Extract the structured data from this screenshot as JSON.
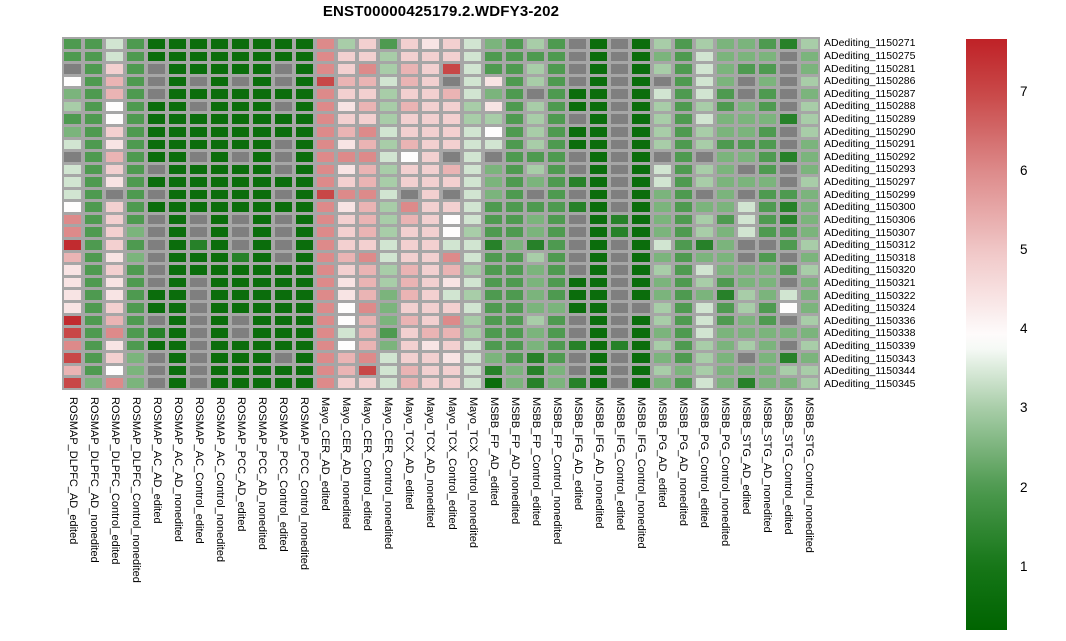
{
  "title": "ENST00000425179.2.WDFY3-202",
  "chart_data": {
    "type": "heatmap",
    "title": "ENST00000425179.2.WDFY3-202",
    "rows": [
      "ADediting_1150271",
      "ADediting_1150275",
      "ADediting_1150281",
      "ADediting_1150286",
      "ADediting_1150287",
      "ADediting_1150288",
      "ADediting_1150289",
      "ADediting_1150290",
      "ADediting_1150291",
      "ADediting_1150292",
      "ADediting_1150293",
      "ADediting_1150297",
      "ADediting_1150299",
      "ADediting_1150300",
      "ADediting_1150306",
      "ADediting_1150307",
      "ADediting_1150312",
      "ADediting_1150318",
      "ADediting_1150320",
      "ADediting_1150321",
      "ADediting_1150322",
      "ADediting_1150324",
      "ADediting_1150336",
      "ADediting_1150338",
      "ADediting_1150339",
      "ADediting_1150343",
      "ADediting_1150344",
      "ADediting_1150345"
    ],
    "columns": [
      "ROSMAP_DLPFC_AD_edited",
      "ROSMAP_DLPFC_AD_nonedited",
      "ROSMAP_DLPFC_Control_edited",
      "ROSMAP_DLPFC_Control_nonedited",
      "ROSMAP_AC_AD_edited",
      "ROSMAP_AC_AD_nonedited",
      "ROSMAP_AC_Control_edited",
      "ROSMAP_AC_Control_nonedited",
      "ROSMAP_PCC_AD_edited",
      "ROSMAP_PCC_AD_nonedited",
      "ROSMAP_PCC_Control_edited",
      "ROSMAP_PCC_Control_nonedited",
      "Mayo_CER_AD_edited",
      "Mayo_CER_AD_nonedited",
      "Mayo_CER_Control_edited",
      "Mayo_CER_Control_nonedited",
      "Mayo_TCX_AD_edited",
      "Mayo_TCX_AD_nonedited",
      "Mayo_TCX_Control_edited",
      "Mayo_TCX_Control_nonedited",
      "MSBB_FP_AD_edited",
      "MSBB_FP_AD_nonedited",
      "MSBB_FP_Control_edited",
      "MSBB_FP_Control_nonedited",
      "MSBB_IFG_AD_edited",
      "MSBB_IFG_AD_nonedited",
      "MSBB_IFG_Control_edited",
      "MSBB_IFG_Control_nonedited",
      "MSBB_PG_AD_edited",
      "MSBB_PG_AD_nonedited",
      "MSBB_PG_Control_edited",
      "MSBB_PG_Control_nonedited",
      "MSBB_STG_AD_edited",
      "MSBB_STG_AD_nonedited",
      "MSBB_STG_Control_edited",
      "MSBB_STG_Control_nonedited"
    ],
    "values": [
      [
        2,
        2,
        3.4,
        2,
        0.6,
        0.6,
        0.6,
        0.6,
        0.6,
        0.6,
        0.6,
        0.6,
        6,
        3,
        4.8,
        2,
        4.8,
        4.4,
        4.8,
        3.4,
        2.5,
        2,
        3,
        2,
        null,
        0.6,
        null,
        0.6,
        3,
        2,
        3,
        2.5,
        2.5,
        2,
        1.3,
        3
      ],
      [
        2,
        2,
        3.4,
        2,
        0.6,
        0.6,
        0.6,
        0.6,
        0.6,
        0.6,
        0.6,
        0.6,
        6,
        4.8,
        4.8,
        3,
        4.8,
        4.8,
        4.8,
        3.4,
        2,
        2,
        2,
        2,
        null,
        0.6,
        null,
        0.6,
        2.5,
        2,
        3.4,
        2.5,
        2.5,
        2.5,
        null,
        2.5
      ],
      [
        null,
        2,
        4.8,
        2,
        null,
        0.6,
        0.6,
        0.6,
        0.6,
        0.6,
        null,
        0.6,
        6,
        4.8,
        6,
        3,
        5.3,
        4.8,
        7,
        3.4,
        2,
        2,
        3,
        2,
        null,
        0.6,
        null,
        0.6,
        3,
        2,
        3.4,
        2.5,
        2,
        2,
        null,
        2.5
      ],
      [
        3.9,
        2,
        5.3,
        2,
        null,
        0.6,
        null,
        0.6,
        null,
        0.6,
        null,
        0.6,
        7,
        5.3,
        5.3,
        3.4,
        5.3,
        4.8,
        null,
        3.4,
        4.4,
        2,
        3,
        2,
        null,
        0.6,
        null,
        0.6,
        null,
        2,
        3.4,
        2.5,
        null,
        2.5,
        null,
        3
      ],
      [
        2.5,
        2,
        5.3,
        2,
        null,
        0.6,
        0.6,
        0.6,
        0.6,
        0.6,
        0.6,
        0.6,
        6,
        4.8,
        4.8,
        3,
        4.8,
        4.8,
        5.3,
        3.4,
        2.5,
        2,
        null,
        2,
        0.6,
        0.6,
        null,
        0.6,
        3.4,
        2,
        3.4,
        2,
        null,
        2,
        null,
        2.5
      ],
      [
        3,
        2,
        3.9,
        2,
        0.6,
        0.6,
        null,
        0.6,
        0.6,
        0.6,
        null,
        0.6,
        6,
        4.4,
        5.3,
        3,
        5.3,
        4.8,
        4.8,
        3,
        4.4,
        2,
        3,
        2,
        0.6,
        0.6,
        null,
        0.6,
        3,
        2,
        3,
        2,
        2.5,
        2,
        null,
        3
      ],
      [
        2,
        2,
        3.9,
        2,
        0.6,
        0.6,
        0.6,
        0.6,
        0.6,
        0.6,
        0.6,
        0.6,
        6,
        4.8,
        4.8,
        3,
        4.8,
        4.8,
        4.8,
        3,
        3,
        2,
        3,
        2,
        null,
        0.6,
        null,
        0.6,
        3,
        2,
        3.4,
        2.5,
        2.5,
        2.5,
        1.3,
        3
      ],
      [
        2.5,
        2,
        4.8,
        2,
        0.6,
        0.6,
        0.6,
        0.6,
        0.6,
        0.6,
        0.6,
        0.6,
        6,
        5.3,
        6,
        3.4,
        4.8,
        4.8,
        4.8,
        3.4,
        3.9,
        2,
        3,
        2,
        0.6,
        0.6,
        null,
        0.6,
        3,
        2,
        3,
        2.5,
        2.5,
        2,
        null,
        3
      ],
      [
        3.4,
        2,
        4.4,
        2,
        0.6,
        0.6,
        0.6,
        0.6,
        0.6,
        0.6,
        null,
        0.6,
        6,
        4.4,
        5.3,
        3,
        5.3,
        4.8,
        4.8,
        3.4,
        3.4,
        2,
        3,
        2,
        0.6,
        0.6,
        null,
        0.6,
        3,
        2,
        3,
        2,
        2,
        2,
        null,
        2.5
      ],
      [
        null,
        2,
        5.3,
        2,
        0.6,
        0.6,
        null,
        0.6,
        null,
        0.6,
        null,
        0.6,
        6,
        6,
        6,
        3.4,
        3.9,
        4.8,
        null,
        3.4,
        null,
        2,
        2,
        2,
        null,
        0.6,
        null,
        0.6,
        null,
        2,
        null,
        2.5,
        2.5,
        2,
        1.3,
        2.5
      ],
      [
        3.4,
        2,
        4.8,
        2,
        null,
        0.6,
        0.6,
        0.6,
        0.6,
        0.6,
        null,
        0.6,
        6,
        4.4,
        5.3,
        3,
        4.8,
        4.8,
        5.3,
        3.4,
        2.5,
        2,
        3,
        2,
        null,
        0.6,
        null,
        0.6,
        3.4,
        2,
        3,
        2.5,
        null,
        2,
        null,
        2.5
      ],
      [
        3.4,
        2,
        4.4,
        2,
        0.6,
        0.6,
        0.6,
        0.6,
        0.6,
        0.6,
        0.6,
        0.6,
        6,
        4.8,
        5.3,
        3,
        4.8,
        4.8,
        4.8,
        3.4,
        2.5,
        2,
        2.5,
        2,
        1.3,
        0.6,
        null,
        0.6,
        3.4,
        2,
        3,
        2.5,
        2.5,
        2.5,
        null,
        3
      ],
      [
        3.4,
        2,
        null,
        2,
        null,
        0.6,
        0.6,
        0.6,
        0.6,
        0.6,
        null,
        0.6,
        7,
        6,
        6,
        3.4,
        null,
        4.8,
        null,
        3.4,
        2.5,
        2,
        null,
        2,
        null,
        0.6,
        null,
        0.6,
        2.5,
        2,
        null,
        2.5,
        null,
        2,
        2,
        2.5
      ],
      [
        3.9,
        2,
        4.8,
        2,
        0.6,
        0.6,
        0.6,
        0.6,
        0.6,
        0.6,
        0.6,
        0.6,
        6,
        4.4,
        5.3,
        3,
        6,
        4.8,
        4.8,
        3.4,
        2,
        2,
        2,
        2,
        1.3,
        0.6,
        null,
        0.6,
        2.5,
        2,
        2.5,
        2.5,
        3.4,
        2,
        1.3,
        2.5
      ],
      [
        6,
        2,
        4.8,
        2,
        null,
        0.6,
        null,
        0.6,
        null,
        0.6,
        null,
        0.6,
        6,
        4.8,
        5.3,
        3,
        5.3,
        4.8,
        3.9,
        3.4,
        2,
        2,
        2.5,
        2,
        null,
        0.6,
        1.3,
        0.6,
        2.5,
        2,
        3,
        2,
        3.4,
        2,
        1.3,
        2.5
      ],
      [
        6,
        2,
        4.8,
        2.5,
        null,
        0.6,
        null,
        0.6,
        null,
        0.6,
        null,
        0.6,
        6,
        4.8,
        5.3,
        3,
        4.8,
        4.8,
        3.9,
        3,
        2,
        2,
        2.5,
        2,
        null,
        0.6,
        1.3,
        0.6,
        2.5,
        2,
        3,
        2.5,
        3.4,
        2,
        2,
        2.5
      ],
      [
        7.5,
        2,
        4.8,
        2,
        null,
        0.6,
        1.3,
        0.6,
        null,
        0.6,
        null,
        0.6,
        6,
        4.8,
        4.8,
        3.4,
        4.8,
        4.8,
        3.4,
        3.4,
        1.3,
        2.5,
        1.3,
        2,
        null,
        0.6,
        null,
        0.6,
        3.4,
        2,
        1.3,
        2.5,
        null,
        null,
        2,
        3
      ],
      [
        5.3,
        2,
        4.4,
        2.5,
        null,
        0.6,
        0.6,
        0.6,
        1.3,
        0.6,
        null,
        0.6,
        6,
        5.3,
        6,
        3.4,
        4.8,
        4.8,
        6,
        3.4,
        2,
        2,
        3,
        2,
        null,
        0.6,
        null,
        0.6,
        2.5,
        2,
        2.5,
        2.5,
        null,
        2,
        null,
        2.5
      ],
      [
        4.4,
        2,
        4.8,
        2,
        null,
        0.6,
        0.6,
        0.6,
        0.6,
        0.6,
        0.6,
        0.6,
        6,
        4.8,
        5.3,
        3,
        5.3,
        4.8,
        5.3,
        3,
        2,
        2,
        2.5,
        2,
        null,
        0.6,
        null,
        0.6,
        3,
        2,
        3.4,
        2.5,
        2.5,
        2.5,
        2,
        3
      ],
      [
        4.4,
        2,
        4.4,
        2,
        null,
        0.6,
        null,
        0.6,
        0.6,
        0.6,
        0.6,
        0.6,
        6,
        4.4,
        5.3,
        3,
        5.3,
        4.8,
        4.4,
        3.4,
        2,
        2,
        2.5,
        2,
        0.6,
        0.6,
        null,
        0.6,
        2.5,
        2,
        3,
        2,
        2.5,
        2.5,
        null,
        2.5
      ],
      [
        4.4,
        2,
        4.4,
        2,
        0.6,
        0.6,
        null,
        0.6,
        0.6,
        0.6,
        0.6,
        0.6,
        6,
        4.4,
        5.3,
        2.5,
        5.3,
        4.8,
        3.4,
        3,
        2,
        2,
        2.5,
        2,
        0.6,
        0.6,
        null,
        0.6,
        2.5,
        2,
        2.5,
        1.3,
        3,
        2.5,
        3.4,
        2.5
      ],
      [
        4.4,
        2,
        4.8,
        2,
        0.6,
        0.6,
        null,
        0.6,
        0.6,
        0.6,
        0.6,
        0.6,
        6,
        3.9,
        6,
        2.5,
        4.8,
        4.8,
        4.8,
        3.4,
        2,
        2,
        2.5,
        2.5,
        0.6,
        0.6,
        null,
        null,
        3,
        2,
        3.4,
        2,
        3,
        2,
        3.9,
        2.5
      ],
      [
        7.5,
        2,
        5.3,
        2,
        null,
        0.6,
        null,
        0.6,
        null,
        0.6,
        0.6,
        0.6,
        6,
        3.9,
        5.3,
        2.5,
        5.3,
        4.8,
        6,
        3,
        2,
        2,
        3,
        2,
        null,
        0.6,
        null,
        0.6,
        3,
        2,
        3.4,
        2,
        2.5,
        2,
        null,
        3
      ],
      [
        7,
        2,
        6,
        2,
        1.3,
        0.6,
        null,
        0.6,
        null,
        0.6,
        0.6,
        0.6,
        6,
        3.4,
        5.3,
        2,
        4.8,
        5.3,
        5.3,
        3,
        2,
        2,
        2.5,
        2,
        null,
        0.6,
        null,
        0.6,
        2.5,
        2,
        3.4,
        2.5,
        2.5,
        2.5,
        2.5,
        2.5
      ],
      [
        6,
        2,
        4.4,
        2,
        0.6,
        0.6,
        null,
        0.6,
        0.6,
        0.6,
        0.6,
        0.6,
        6,
        3.9,
        5.3,
        2.5,
        4.8,
        4.4,
        4.8,
        3.4,
        2,
        2,
        2.5,
        2,
        1.3,
        0.6,
        1.3,
        0.6,
        3,
        2,
        3,
        2.5,
        3,
        2.5,
        null,
        3
      ],
      [
        7,
        2,
        4.8,
        2.5,
        null,
        0.6,
        null,
        0.6,
        0.6,
        0.6,
        null,
        0.6,
        6,
        5.3,
        6,
        3.4,
        4.8,
        4.8,
        4.4,
        3.4,
        2.5,
        2,
        1.3,
        2,
        null,
        0.6,
        null,
        0.6,
        2.5,
        2,
        3,
        2.5,
        null,
        2.5,
        1.3,
        2.5
      ],
      [
        5.3,
        2,
        3.9,
        2.5,
        null,
        0.6,
        null,
        0.6,
        0.6,
        0.6,
        0.6,
        0.6,
        6,
        5.3,
        7,
        3.4,
        5.3,
        4.8,
        4.8,
        3.4,
        1.3,
        2.5,
        1.3,
        2.5,
        null,
        0.6,
        null,
        0.6,
        3,
        2.5,
        3,
        2.5,
        2.5,
        2.5,
        3,
        3
      ],
      [
        7,
        2.5,
        6,
        2.5,
        null,
        0.6,
        null,
        0.6,
        0.6,
        0.6,
        0.6,
        0.6,
        6,
        4.8,
        4.8,
        3.4,
        5.3,
        4.8,
        4.8,
        3.4,
        0.6,
        2.5,
        1.3,
        2.5,
        1.3,
        0.6,
        null,
        0.6,
        2.5,
        2,
        3.4,
        2.5,
        1.3,
        2.5,
        2.5,
        3
      ]
    ],
    "value_range": [
      0.2,
      7.67
    ],
    "na_value": null,
    "colors": {
      "na_cell": "#7f7f7f",
      "grid_line": "#a6a6a6",
      "low": "#006400",
      "mid": "#ffffff",
      "high": "#bf2227"
    },
    "colormap_anchors": [
      [
        0.2,
        "#006400"
      ],
      [
        1.0,
        "#167618"
      ],
      [
        2.0,
        "#4e9a50"
      ],
      [
        3.0,
        "#a8cda8"
      ],
      [
        3.85,
        "#ffffff"
      ],
      [
        5.0,
        "#f0c6c6"
      ],
      [
        6.0,
        "#dd8a8a"
      ],
      [
        7.0,
        "#c84747"
      ],
      [
        7.67,
        "#bf2227"
      ]
    ],
    "colorbar": {
      "position": "right",
      "ticks": [
        7,
        6,
        5,
        4,
        3,
        2,
        1
      ],
      "tick_labels": [
        "7",
        "6",
        "5",
        "4",
        "3",
        "2",
        "1"
      ]
    },
    "grid": true,
    "legend_position": "right"
  }
}
